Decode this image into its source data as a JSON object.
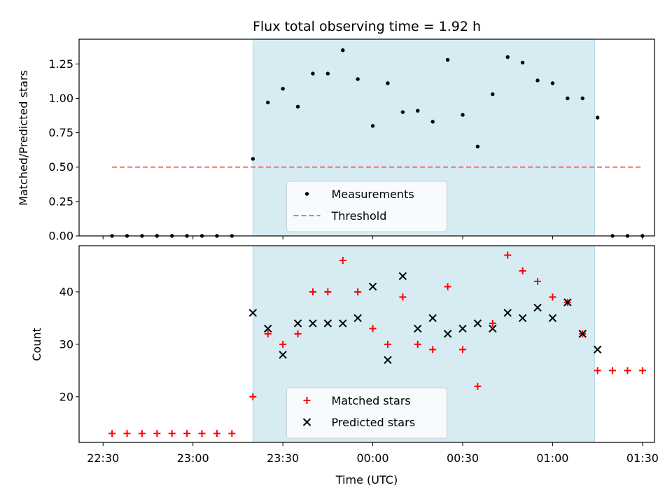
{
  "chart_data": [
    {
      "type": "scatter",
      "title": "Flux total observing time = 1.92 h",
      "xlabel": "",
      "ylabel": "Matched/Predicted stars",
      "xlim": [
        "22:22",
        "01:34"
      ],
      "ylim": [
        0,
        1.43
      ],
      "yticks": [
        "0.00",
        "0.25",
        "0.50",
        "0.75",
        "1.00",
        "1.25"
      ],
      "shaded_region": [
        "23:20",
        "01:14"
      ],
      "legend_position": "lower center",
      "x": [
        "22:33",
        "22:38",
        "22:43",
        "22:48",
        "22:53",
        "22:58",
        "23:03",
        "23:08",
        "23:13",
        "23:20",
        "23:25",
        "23:30",
        "23:35",
        "23:40",
        "23:45",
        "23:50",
        "23:55",
        "00:00",
        "00:05",
        "00:10",
        "00:15",
        "00:20",
        "00:25",
        "00:30",
        "00:35",
        "00:40",
        "00:45",
        "00:50",
        "00:55",
        "01:00",
        "01:05",
        "01:10",
        "01:15",
        "01:20",
        "01:25",
        "01:30"
      ],
      "series": [
        {
          "name": "Measurements",
          "marker": "dot",
          "color": "#000000",
          "values": [
            0,
            0,
            0,
            0,
            0,
            0,
            0,
            0,
            0,
            0.56,
            0.97,
            1.07,
            0.94,
            1.18,
            1.18,
            1.35,
            1.14,
            0.8,
            1.11,
            0.9,
            0.91,
            0.83,
            1.28,
            0.88,
            0.65,
            1.03,
            1.3,
            1.26,
            1.13,
            1.11,
            1.0,
            1.0,
            0.86,
            0,
            0,
            0
          ]
        },
        {
          "name": "Threshold",
          "type": "line",
          "style": "dashed",
          "color": "#ff6b6b",
          "x": [
            "22:33",
            "01:30"
          ],
          "values": [
            0.5,
            0.5
          ]
        }
      ]
    },
    {
      "type": "scatter",
      "title": "",
      "xlabel": "Time (UTC)",
      "ylabel": "Count",
      "xlim": [
        "22:22",
        "01:34"
      ],
      "ylim": [
        11.3,
        48.8
      ],
      "xticks": [
        "22:30",
        "23:00",
        "23:30",
        "00:00",
        "00:30",
        "01:00",
        "01:30"
      ],
      "yticks": [
        "20",
        "30",
        "40"
      ],
      "shaded_region": [
        "23:20",
        "01:14"
      ],
      "legend_position": "lower center",
      "series": [
        {
          "name": "Matched stars",
          "marker": "+",
          "color": "#ff0000",
          "x": [
            "22:33",
            "22:38",
            "22:43",
            "22:48",
            "22:53",
            "22:58",
            "23:03",
            "23:08",
            "23:13",
            "23:20",
            "23:25",
            "23:30",
            "23:35",
            "23:40",
            "23:45",
            "23:50",
            "23:55",
            "00:00",
            "00:05",
            "00:10",
            "00:15",
            "00:20",
            "00:25",
            "00:30",
            "00:35",
            "00:40",
            "00:45",
            "00:50",
            "00:55",
            "01:00",
            "01:05",
            "01:10",
            "01:15",
            "01:20",
            "01:25",
            "01:30"
          ],
          "values": [
            13,
            13,
            13,
            13,
            13,
            13,
            13,
            13,
            13,
            20,
            32,
            30,
            32,
            40,
            40,
            46,
            40,
            33,
            30,
            39,
            30,
            29,
            41,
            29,
            22,
            34,
            47,
            44,
            42,
            39,
            38,
            32,
            25,
            25,
            25,
            25
          ]
        },
        {
          "name": "Predicted stars",
          "marker": "x",
          "color": "#000000",
          "x": [
            "23:20",
            "23:25",
            "23:30",
            "23:35",
            "23:40",
            "23:45",
            "23:50",
            "23:55",
            "00:00",
            "00:05",
            "00:10",
            "00:15",
            "00:20",
            "00:25",
            "00:30",
            "00:35",
            "00:40",
            "00:45",
            "00:50",
            "00:55",
            "01:00",
            "01:05",
            "01:10",
            "01:15"
          ],
          "values": [
            36,
            33,
            28,
            34,
            34,
            34,
            34,
            35,
            41,
            27,
            43,
            33,
            35,
            32,
            33,
            34,
            33,
            36,
            35,
            37,
            35,
            38,
            32,
            29
          ]
        }
      ]
    }
  ]
}
